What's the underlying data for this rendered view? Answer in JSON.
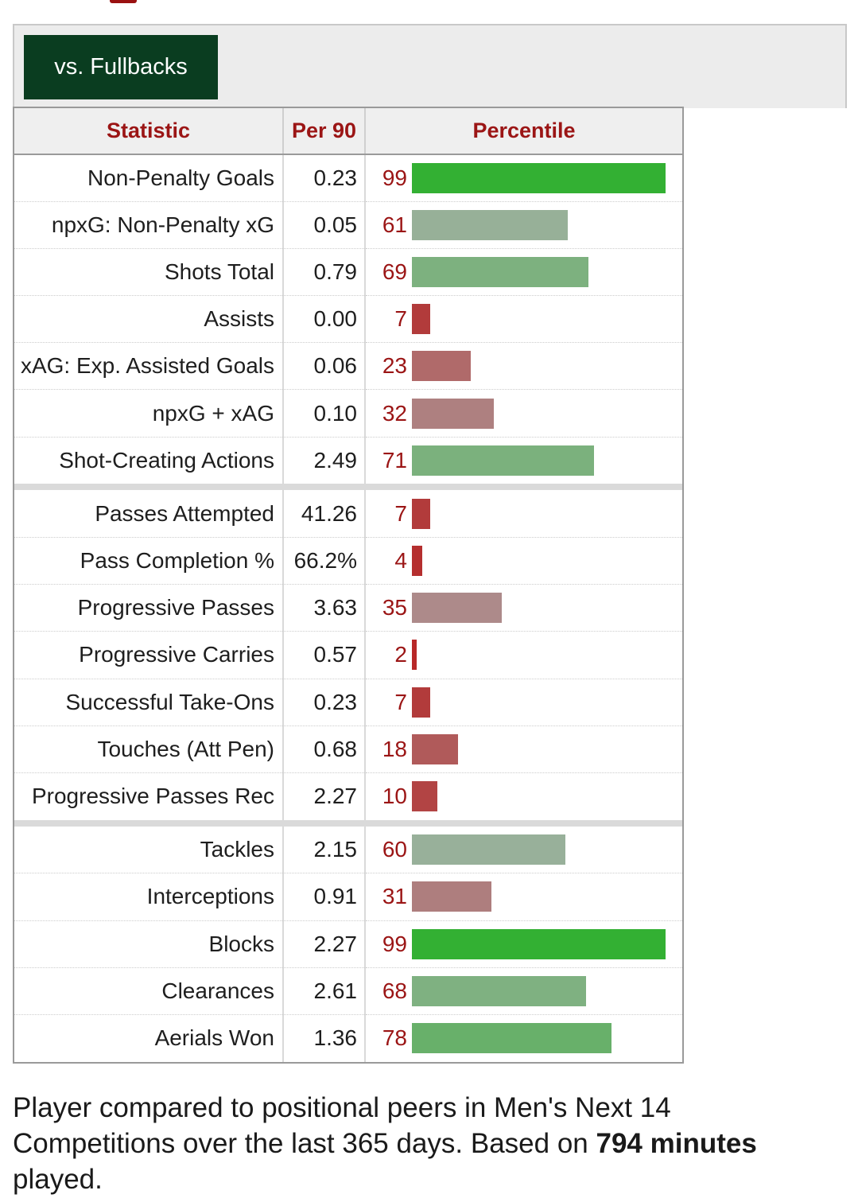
{
  "filter_tab": {
    "label": "vs. Fullbacks"
  },
  "table": {
    "headers": {
      "statistic": "Statistic",
      "per90": "Per 90",
      "percentile": "Percentile"
    },
    "groups": [
      [
        {
          "statistic": "Non-Penalty Goals",
          "per90": "0.23",
          "percentile": 99,
          "color": "#33b033"
        },
        {
          "statistic": "npxG: Non-Penalty xG",
          "per90": "0.05",
          "percentile": 61,
          "color": "#97b098"
        },
        {
          "statistic": "Shots Total",
          "per90": "0.79",
          "percentile": 69,
          "color": "#7db17f"
        },
        {
          "statistic": "Assists",
          "per90": "0.00",
          "percentile": 7,
          "color": "#b23b3b"
        },
        {
          "statistic": "xAG: Exp. Assisted Goals",
          "per90": "0.06",
          "percentile": 23,
          "color": "#b06a6a"
        },
        {
          "statistic": "npxG + xAG",
          "per90": "0.10",
          "percentile": 32,
          "color": "#ae8080"
        },
        {
          "statistic": "Shot-Creating Actions",
          "per90": "2.49",
          "percentile": 71,
          "color": "#7bb17d"
        }
      ],
      [
        {
          "statistic": "Passes Attempted",
          "per90": "41.26",
          "percentile": 7,
          "color": "#b23b3b"
        },
        {
          "statistic": "Pass Completion %",
          "per90": "66.2%",
          "percentile": 4,
          "color": "#b52f2f"
        },
        {
          "statistic": "Progressive Passes",
          "per90": "3.63",
          "percentile": 35,
          "color": "#ad8a8a"
        },
        {
          "statistic": "Progressive Carries",
          "per90": "0.57",
          "percentile": 2,
          "color": "#b82828"
        },
        {
          "statistic": "Successful Take-Ons",
          "per90": "0.23",
          "percentile": 7,
          "color": "#b23b3b"
        },
        {
          "statistic": "Touches (Att Pen)",
          "per90": "0.68",
          "percentile": 18,
          "color": "#b05a5a"
        },
        {
          "statistic": "Progressive Passes Rec",
          "per90": "2.27",
          "percentile": 10,
          "color": "#b24444"
        }
      ],
      [
        {
          "statistic": "Tackles",
          "per90": "2.15",
          "percentile": 60,
          "color": "#98b09a"
        },
        {
          "statistic": "Interceptions",
          "per90": "0.91",
          "percentile": 31,
          "color": "#ae7e7e"
        },
        {
          "statistic": "Blocks",
          "per90": "2.27",
          "percentile": 99,
          "color": "#33b033"
        },
        {
          "statistic": "Clearances",
          "per90": "2.61",
          "percentile": 68,
          "color": "#7fb181"
        },
        {
          "statistic": "Aerials Won",
          "per90": "1.36",
          "percentile": 78,
          "color": "#68b06a"
        }
      ]
    ]
  },
  "footnote": {
    "text_before": "Player compared to positional peers in Men's Next 14 Competitions over the last 365 days. Based on ",
    "minutes_bold": "794 minutes",
    "text_after": " played."
  },
  "colors": {
    "header_text": "#9b1515",
    "tab_background": "#0a3d20",
    "percentile_text": "#9b1515"
  }
}
